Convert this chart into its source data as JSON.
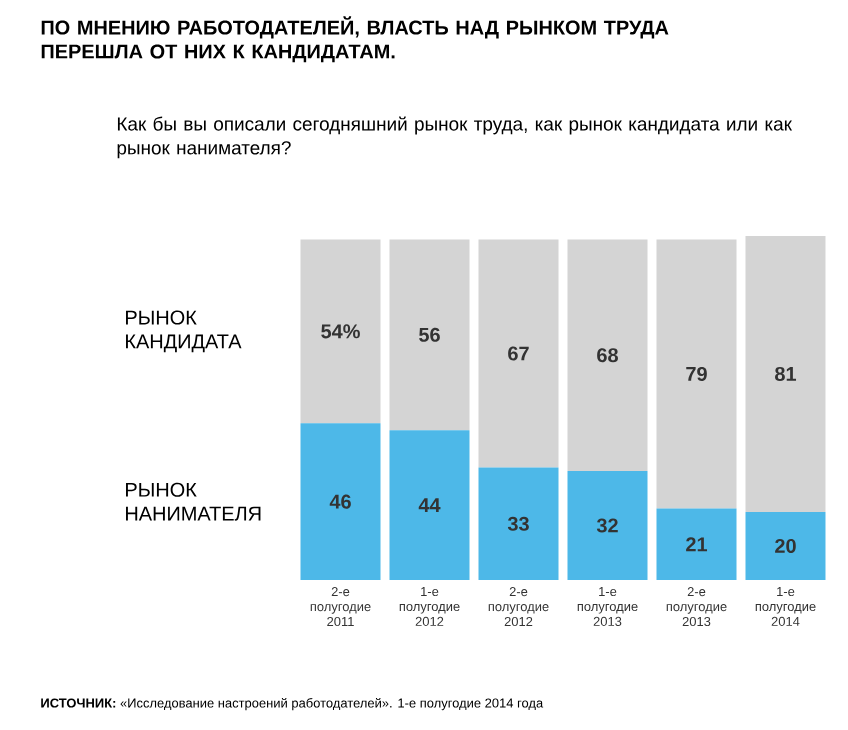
{
  "chart_data": {
    "type": "bar",
    "stacked": true,
    "title": "ПО МНЕНИЮ РАБОТОДАТЕЛЕЙ, ВЛАСТЬ НАД РЫНКОМ ТРУДА ПЕРЕШЛА ОТ НИХ К КАНДИДАТАМ.",
    "subtitle": "Как бы вы описали сегодняшний рынок труда, как рынок кандидата или как рынок нанимателя?",
    "categories": [
      "2-е полугодие 2011",
      "1-е полугодие 2012",
      "2-е полугодие 2012",
      "1-е полугодие 2013",
      "2-е полугодие 2013",
      "1-е полугодие 2014"
    ],
    "series": [
      {
        "name": "РЫНОК НАНИМАТЕЛЯ",
        "color": "#4db8e8",
        "values": [
          46,
          44,
          33,
          32,
          21,
          20
        ],
        "value_labels": [
          "46",
          "44",
          "33",
          "32",
          "21",
          "20"
        ]
      },
      {
        "name": "РЫНОК КАНДИДАТА",
        "color": "#d4d4d4",
        "values": [
          54,
          56,
          67,
          68,
          79,
          81
        ],
        "value_labels": [
          "54%",
          "56",
          "67",
          "68",
          "79",
          "81"
        ]
      }
    ],
    "annotations": [
      "**ИСТОЧНИК:** «Исследование настроений работодателей». 1-е полугодие 2014 года"
    ]
  }
}
